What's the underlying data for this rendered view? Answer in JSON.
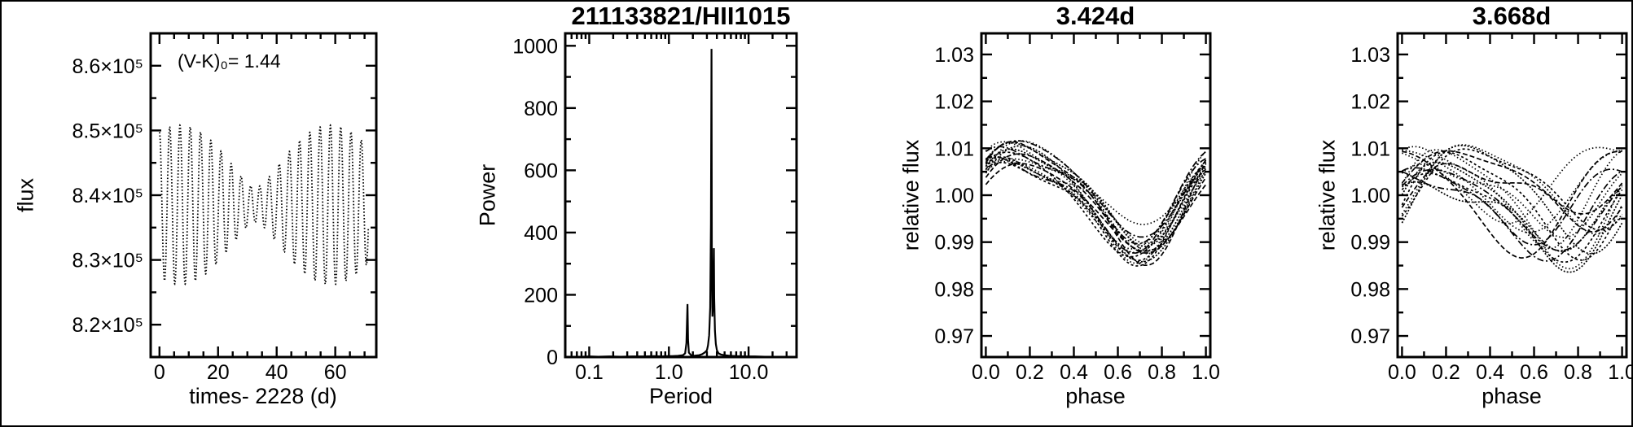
{
  "colors": {
    "background": "#ffffff",
    "foreground": "#000000"
  },
  "chart_data": [
    {
      "id": "light-curve",
      "type": "scatter",
      "title": "",
      "xlabel": "times- 2228 (d)",
      "ylabel": "flux",
      "annotation": "(V-K)₀= 1.44",
      "xlim": [
        -3,
        74
      ],
      "ylim": [
        815000,
        865000
      ],
      "xticks": {
        "values": [
          0,
          20,
          40,
          60
        ],
        "labels": [
          "0",
          "20",
          "40",
          "60"
        ],
        "minor": [
          5,
          10,
          15,
          25,
          30,
          35,
          45,
          50,
          55,
          65,
          70
        ]
      },
      "yticks": {
        "values": [
          820000,
          830000,
          840000,
          850000,
          860000
        ],
        "labels": [
          "8.2×10⁵",
          "8.3×10⁵",
          "8.4×10⁵",
          "8.5×10⁵",
          "8.6×10⁵"
        ],
        "minor": [
          825000,
          835000,
          845000,
          855000
        ]
      },
      "series": {
        "kind": "beat_sinusoid",
        "mean": 838500,
        "components": [
          {
            "period_d": 3.424,
            "amplitude": 7500
          },
          {
            "period_d": 3.668,
            "amplitude": 4800
          }
        ],
        "phase_ref_d": 7,
        "t_start": 0,
        "t_end": 71.3,
        "dt": 0.03
      }
    },
    {
      "id": "periodogram",
      "type": "line",
      "title": "211133821/HII1015",
      "xlabel": "Period",
      "ylabel": "Power",
      "xscale": "log",
      "xlim": [
        0.05,
        40
      ],
      "ylim": [
        0,
        1040
      ],
      "xticks": {
        "values": [
          0.1,
          1,
          10
        ],
        "labels": [
          "0.1",
          "1.0",
          "10.0"
        ],
        "minor": [
          0.06,
          0.07,
          0.08,
          0.09,
          0.2,
          0.3,
          0.4,
          0.5,
          0.6,
          0.7,
          0.8,
          0.9,
          2,
          3,
          4,
          5,
          6,
          7,
          8,
          9,
          20,
          30
        ]
      },
      "yticks": {
        "values": [
          0,
          200,
          400,
          600,
          800,
          1000
        ],
        "labels": [
          "0",
          "200",
          "400",
          "600",
          "800",
          "1000"
        ],
        "minor": [
          100,
          300,
          500,
          700,
          900
        ]
      },
      "main_peak": {
        "period_d": 3.424,
        "power": 990
      },
      "secondary_peak": {
        "period_d": 3.668,
        "power": 350
      },
      "alias_peak": {
        "period_d": 1.712,
        "power": 170
      },
      "points": [
        [
          0.05,
          1
        ],
        [
          0.08,
          1
        ],
        [
          0.1,
          2
        ],
        [
          0.13,
          1
        ],
        [
          0.18,
          2
        ],
        [
          0.25,
          1
        ],
        [
          0.35,
          2
        ],
        [
          0.5,
          2
        ],
        [
          0.65,
          3
        ],
        [
          0.8,
          2
        ],
        [
          0.95,
          3
        ],
        [
          1.1,
          3
        ],
        [
          1.3,
          4
        ],
        [
          1.5,
          6
        ],
        [
          1.6,
          12
        ],
        [
          1.66,
          45
        ],
        [
          1.712,
          170
        ],
        [
          1.74,
          55
        ],
        [
          1.78,
          14
        ],
        [
          1.9,
          6
        ],
        [
          2.05,
          4
        ],
        [
          2.2,
          5
        ],
        [
          2.4,
          6
        ],
        [
          2.6,
          9
        ],
        [
          2.8,
          14
        ],
        [
          3.0,
          22
        ],
        [
          3.1,
          38
        ],
        [
          3.2,
          70
        ],
        [
          3.3,
          160
        ],
        [
          3.37,
          430
        ],
        [
          3.424,
          990
        ],
        [
          3.46,
          320
        ],
        [
          3.52,
          130
        ],
        [
          3.58,
          170
        ],
        [
          3.668,
          350
        ],
        [
          3.7,
          190
        ],
        [
          3.78,
          85
        ],
        [
          3.88,
          42
        ],
        [
          4.0,
          22
        ],
        [
          4.2,
          12
        ],
        [
          4.5,
          8
        ],
        [
          5.0,
          6
        ],
        [
          5.8,
          4
        ],
        [
          7,
          3
        ],
        [
          9,
          2
        ],
        [
          12,
          2
        ],
        [
          16,
          1
        ],
        [
          22,
          1
        ],
        [
          30,
          1
        ],
        [
          38,
          1
        ]
      ]
    },
    {
      "id": "phase-fold-3424",
      "type": "line",
      "title": "3.424d",
      "period_d": 3.424,
      "xlabel": "phase",
      "ylabel": "relative flux",
      "xlim": [
        -0.02,
        1.02
      ],
      "ylim": [
        0.9655,
        1.0345
      ],
      "xticks": {
        "values": [
          0,
          0.2,
          0.4,
          0.6,
          0.8,
          1.0
        ],
        "labels": [
          "0.0",
          "0.2",
          "0.4",
          "0.6",
          "0.8",
          "1.0"
        ],
        "minor": [
          0.1,
          0.3,
          0.5,
          0.7,
          0.9
        ]
      },
      "yticks": {
        "values": [
          0.97,
          0.98,
          0.99,
          1.0,
          1.01,
          1.02,
          1.03
        ],
        "labels": [
          "0.97",
          "0.98",
          "0.99",
          "1.00",
          "1.01",
          "1.02",
          "1.03"
        ],
        "minor": [
          0.975,
          0.985,
          0.995,
          1.005,
          1.015,
          1.025
        ]
      },
      "series": {
        "kind": "phase_fold",
        "n_curves": 18,
        "amp_fundamental": 0.0095,
        "amp_harmonic": 0.0022,
        "peak_phase": 0.17,
        "amp_jitter": 0.3,
        "phase_jitter": 0.04,
        "offset_jitter": 0.0025,
        "seed": 12345
      }
    },
    {
      "id": "phase-fold-3668",
      "type": "line",
      "title": "3.668d",
      "period_d": 3.668,
      "xlabel": "phase",
      "ylabel": "relative flux",
      "xlim": [
        -0.02,
        1.02
      ],
      "ylim": [
        0.9655,
        1.0345
      ],
      "xticks": {
        "values": [
          0,
          0.2,
          0.4,
          0.6,
          0.8,
          1.0
        ],
        "labels": [
          "0.0",
          "0.2",
          "0.4",
          "0.6",
          "0.8",
          "1.0"
        ],
        "minor": [
          0.1,
          0.3,
          0.5,
          0.7,
          0.9
        ]
      },
      "yticks": {
        "values": [
          0.97,
          0.98,
          0.99,
          1.0,
          1.01,
          1.02,
          1.03
        ],
        "labels": [
          "0.97",
          "0.98",
          "0.99",
          "1.00",
          "1.01",
          "1.02",
          "1.03"
        ],
        "minor": [
          0.975,
          0.985,
          0.995,
          1.005,
          1.015,
          1.025
        ]
      },
      "series": {
        "kind": "phase_fold",
        "n_curves": 18,
        "amp_fundamental": 0.009,
        "amp_harmonic": 0.0022,
        "peak_phase": 0.17,
        "amp_jitter": 0.35,
        "phase_jitter": 0.22,
        "offset_jitter": 0.004,
        "seed": 999
      }
    }
  ]
}
